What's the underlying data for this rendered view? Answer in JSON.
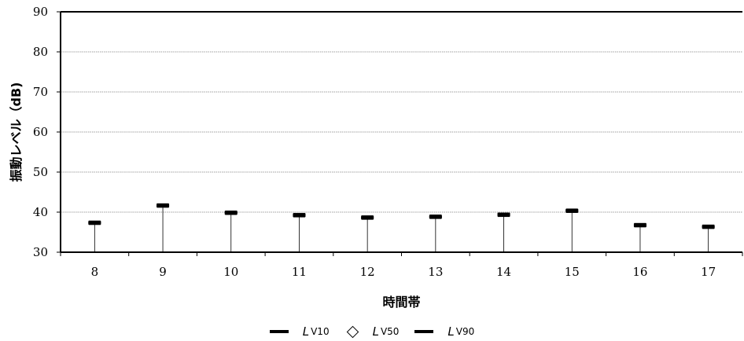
{
  "chart_data": {
    "type": "scatter",
    "xlabel": "時間帯",
    "ylabel": "振動レベル（dB)",
    "ylim": [
      30,
      90
    ],
    "yticks": [
      30,
      40,
      50,
      60,
      70,
      80,
      90
    ],
    "categories": [
      "8",
      "9",
      "10",
      "11",
      "12",
      "13",
      "14",
      "15",
      "16",
      "17"
    ],
    "grid": true,
    "legend_position": "bottom",
    "series": [
      {
        "name": "LV10",
        "marker": "dash",
        "values": [
          37.5,
          41.8,
          40.0,
          39.4,
          38.8,
          39.0,
          39.5,
          40.5,
          36.9,
          36.5
        ]
      },
      {
        "name": "LV50",
        "marker": "diamond",
        "values": [
          null,
          null,
          null,
          null,
          null,
          null,
          null,
          null,
          null,
          null
        ]
      },
      {
        "name": "LV90",
        "marker": "dash",
        "values": [
          37.2,
          41.5,
          39.7,
          39.1,
          38.5,
          38.7,
          39.2,
          40.2,
          36.6,
          36.2
        ]
      }
    ],
    "colors": {
      "marker": "#000000",
      "grid": "#808080",
      "axis": "#000000"
    }
  },
  "legend": [
    {
      "prefix": "L",
      "sub": "V10"
    },
    {
      "prefix": "L",
      "sub": "V50"
    },
    {
      "prefix": "L",
      "sub": "V90"
    }
  ]
}
